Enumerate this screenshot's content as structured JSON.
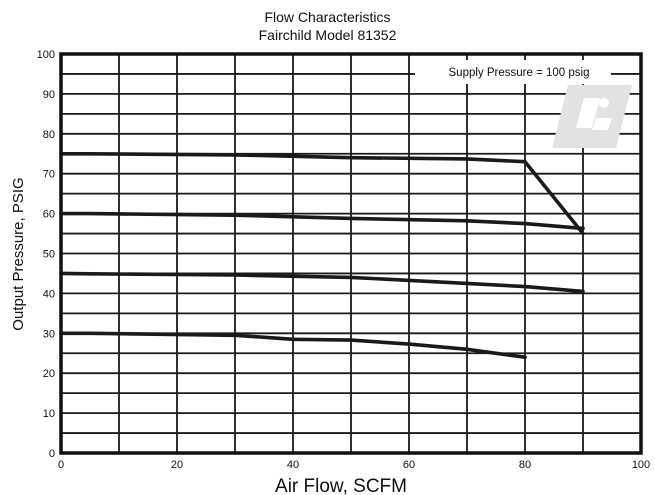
{
  "chart_data": {
    "type": "line",
    "title": "Flow Characteristics",
    "subtitle": "Fairchild Model 81352",
    "xlabel": "Air Flow, SCFM",
    "ylabel": "Output Pressure, PSIG",
    "annotation": "Supply Pressure = 100 psig",
    "xlim": [
      0,
      100
    ],
    "ylim": [
      0,
      100
    ],
    "x_ticks": [
      0,
      20,
      40,
      60,
      80,
      100
    ],
    "y_ticks": [
      0,
      10,
      20,
      30,
      40,
      50,
      60,
      70,
      80,
      90,
      100
    ],
    "x_minor_step": 10,
    "y_minor_step": 5,
    "grid": true,
    "line_color": "#1a1a1a",
    "series": [
      {
        "x": [
          0,
          5,
          30,
          50,
          70,
          80,
          90
        ],
        "y": [
          75,
          75,
          74.7,
          74,
          73.7,
          73,
          55
        ]
      },
      {
        "x": [
          0,
          5,
          30,
          50,
          70,
          80,
          90
        ],
        "y": [
          60,
          60,
          59.6,
          58.8,
          58.2,
          57.5,
          56.3
        ]
      },
      {
        "x": [
          0,
          5,
          30,
          50,
          70,
          80,
          90
        ],
        "y": [
          45,
          44.9,
          44.6,
          44,
          42.5,
          41.7,
          40.5
        ]
      },
      {
        "x": [
          0,
          5,
          30,
          40,
          50,
          60,
          70,
          80
        ],
        "y": [
          30,
          30,
          29.5,
          28.5,
          28.3,
          27.3,
          26,
          24
        ]
      }
    ]
  }
}
